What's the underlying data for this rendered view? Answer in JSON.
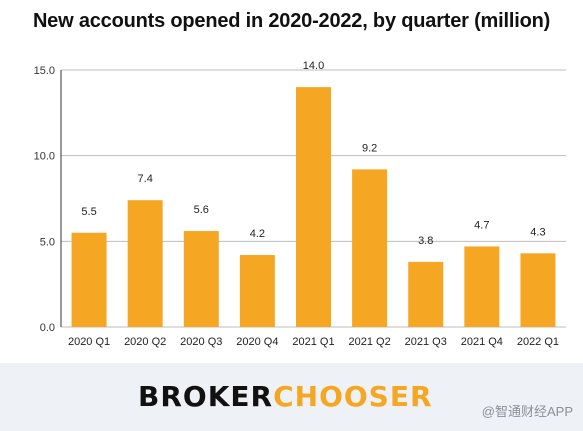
{
  "chart_data": {
    "type": "bar",
    "title": "New accounts opened in 2020-2022, by quarter (million)",
    "categories": [
      "2020 Q1",
      "2020 Q2",
      "2020 Q3",
      "2020 Q4",
      "2021 Q1",
      "2021 Q2",
      "2021 Q3",
      "2021 Q4",
      "2022 Q1"
    ],
    "values": [
      5.5,
      7.4,
      5.6,
      4.2,
      14.0,
      9.2,
      3.8,
      4.7,
      4.3
    ],
    "value_labels": [
      "5.5",
      "7.4",
      "5.6",
      "4.2",
      "14.0",
      "9.2",
      "3.8",
      "4.7",
      "4.3"
    ],
    "yticks": [
      "0.0",
      "5.0",
      "10.0",
      "15.0"
    ],
    "ylim": [
      0,
      15
    ],
    "grid": true,
    "bar_color": "#f5a623"
  },
  "footer": {
    "logo_part1": "BROKER",
    "logo_part2": "CHOOSER",
    "watermark": "@智通财经APP"
  }
}
